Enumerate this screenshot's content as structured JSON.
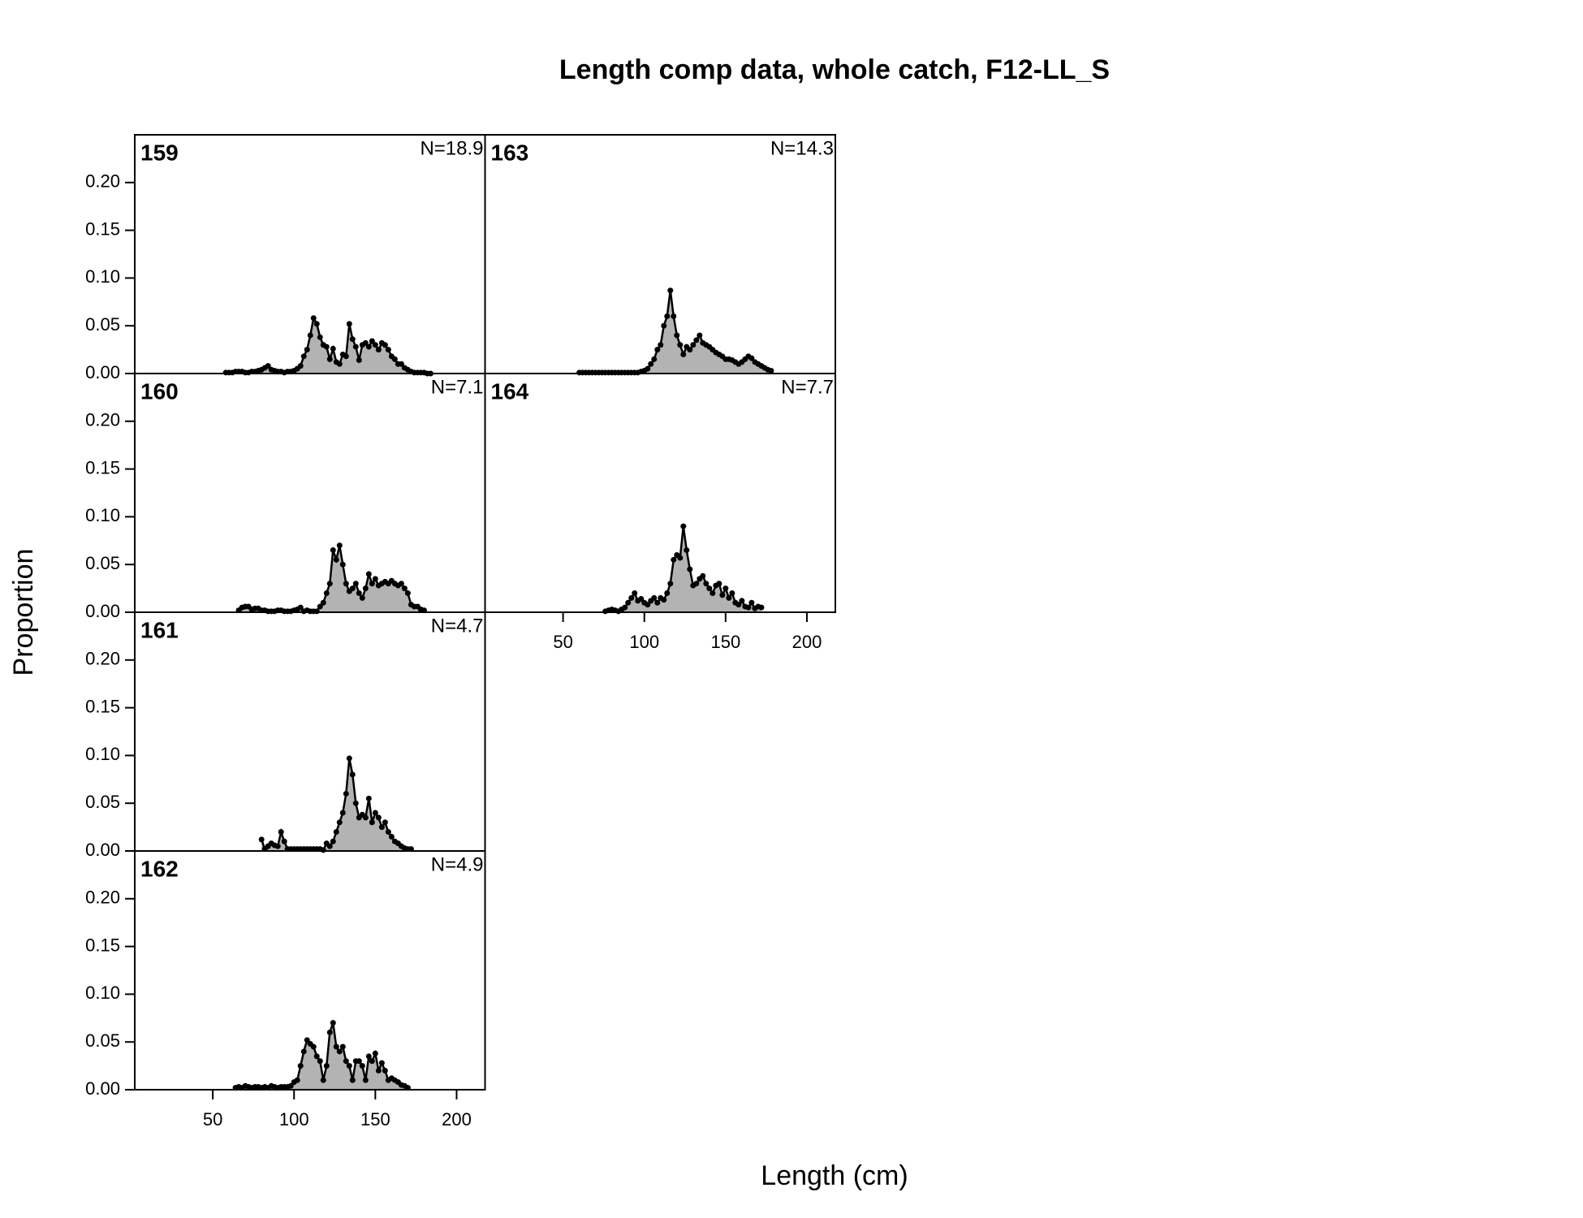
{
  "title": "Length comp data, whole catch, F12-LL_S",
  "x_label": "Length (cm)",
  "y_label": "Proportion",
  "chart_data": [
    {
      "type": "area",
      "title": "159",
      "annotation": "N=18.9",
      "color": "#b3b3b3",
      "line_color": "#000000",
      "xlim": [
        2,
        217.5
      ],
      "ylim": [
        0,
        0.25
      ],
      "yticks": [
        {
          "value": 0,
          "label": "0.00"
        },
        0.05,
        {
          "value": 0.1,
          "label": "0.10"
        },
        0.15,
        {
          "value": 0.2,
          "label": "0.20"
        }
      ],
      "x": [
        58,
        60,
        62,
        64,
        66,
        68,
        70,
        72,
        74,
        76,
        78,
        80,
        82,
        84,
        86,
        88,
        90,
        92,
        94,
        96,
        98,
        100,
        102,
        104,
        106,
        108,
        110,
        112,
        114,
        116,
        118,
        120,
        122,
        124,
        126,
        128,
        130,
        132,
        134,
        136,
        138,
        140,
        142,
        144,
        146,
        148,
        150,
        152,
        154,
        156,
        158,
        160,
        162,
        164,
        166,
        168,
        170,
        172,
        174,
        176,
        178,
        180,
        182,
        184
      ],
      "values": [
        0.001,
        0.001,
        0.001,
        0.002,
        0.002,
        0.002,
        0.001,
        0.001,
        0.002,
        0.002,
        0.003,
        0.004,
        0.006,
        0.008,
        0.004,
        0.003,
        0.002,
        0.002,
        0.001,
        0.002,
        0.002,
        0.003,
        0.005,
        0.008,
        0.018,
        0.025,
        0.04,
        0.058,
        0.052,
        0.038,
        0.03,
        0.028,
        0.015,
        0.026,
        0.012,
        0.01,
        0.02,
        0.018,
        0.052,
        0.036,
        0.028,
        0.014,
        0.03,
        0.032,
        0.028,
        0.034,
        0.03,
        0.025,
        0.032,
        0.03,
        0.025,
        0.018,
        0.015,
        0.01,
        0.01,
        0.006,
        0.004,
        0.002,
        0.001,
        0.001,
        0.001,
        0.001,
        0.0,
        0.0
      ]
    },
    {
      "type": "area",
      "title": "160",
      "annotation": "N=7.1",
      "color": "#b3b3b3",
      "line_color": "#000000",
      "xlim": [
        2,
        217.5
      ],
      "ylim": [
        0,
        0.25
      ],
      "yticks": [
        {
          "value": 0,
          "label": "0.00"
        },
        0.05,
        {
          "value": 0.1,
          "label": "0.10"
        },
        0.15,
        {
          "value": 0.2,
          "label": "0.20"
        }
      ],
      "x": [
        66,
        68,
        70,
        72,
        74,
        76,
        78,
        80,
        82,
        84,
        86,
        88,
        90,
        92,
        94,
        96,
        98,
        100,
        102,
        104,
        106,
        108,
        110,
        112,
        114,
        116,
        118,
        120,
        122,
        124,
        126,
        128,
        130,
        132,
        134,
        136,
        138,
        140,
        142,
        144,
        146,
        148,
        150,
        152,
        154,
        156,
        158,
        160,
        162,
        164,
        166,
        168,
        170,
        172,
        174,
        176,
        178,
        180
      ],
      "values": [
        0.002,
        0.005,
        0.006,
        0.006,
        0.003,
        0.004,
        0.004,
        0.002,
        0.002,
        0.001,
        0.001,
        0.001,
        0.002,
        0.002,
        0.001,
        0.001,
        0.001,
        0.002,
        0.003,
        0.005,
        0.001,
        0.002,
        0.001,
        0.001,
        0.001,
        0.006,
        0.01,
        0.02,
        0.03,
        0.065,
        0.055,
        0.07,
        0.05,
        0.03,
        0.022,
        0.025,
        0.03,
        0.02,
        0.015,
        0.025,
        0.04,
        0.03,
        0.035,
        0.028,
        0.03,
        0.032,
        0.03,
        0.033,
        0.03,
        0.028,
        0.03,
        0.025,
        0.02,
        0.008,
        0.006,
        0.006,
        0.003,
        0.002
      ]
    },
    {
      "type": "area",
      "title": "161",
      "annotation": "N=4.7",
      "color": "#b3b3b3",
      "line_color": "#000000",
      "xlim": [
        2,
        217.5
      ],
      "ylim": [
        0,
        0.25
      ],
      "yticks": [
        {
          "value": 0,
          "label": "0.00"
        },
        0.05,
        {
          "value": 0.1,
          "label": "0.10"
        },
        0.15,
        {
          "value": 0.2,
          "label": "0.20"
        }
      ],
      "x": [
        80,
        82,
        84,
        86,
        88,
        90,
        92,
        94,
        96,
        98,
        100,
        102,
        104,
        106,
        108,
        110,
        112,
        114,
        116,
        118,
        120,
        122,
        124,
        126,
        128,
        130,
        132,
        134,
        136,
        138,
        140,
        142,
        144,
        146,
        148,
        150,
        152,
        154,
        156,
        158,
        160,
        162,
        164,
        166,
        168,
        170,
        172
      ],
      "values": [
        0.012,
        0.002,
        0.005,
        0.008,
        0.006,
        0.005,
        0.02,
        0.01,
        0.002,
        0.002,
        0.002,
        0.002,
        0.002,
        0.002,
        0.002,
        0.002,
        0.002,
        0.002,
        0.002,
        0.001,
        0.008,
        0.005,
        0.01,
        0.02,
        0.03,
        0.04,
        0.06,
        0.097,
        0.08,
        0.05,
        0.035,
        0.038,
        0.035,
        0.055,
        0.03,
        0.04,
        0.035,
        0.025,
        0.03,
        0.02,
        0.015,
        0.01,
        0.008,
        0.005,
        0.003,
        0.002,
        0.002
      ]
    },
    {
      "type": "area",
      "title": "162",
      "annotation": "N=4.9",
      "color": "#b3b3b3",
      "line_color": "#000000",
      "xlim": [
        2,
        217.5
      ],
      "ylim": [
        0,
        0.25
      ],
      "yticks": [
        {
          "value": 0,
          "label": "0.00"
        },
        0.05,
        {
          "value": 0.1,
          "label": "0.10"
        },
        0.15,
        {
          "value": 0.2,
          "label": "0.20"
        }
      ],
      "xticks": [
        50,
        100,
        150,
        200
      ],
      "x": [
        64,
        66,
        68,
        70,
        72,
        74,
        76,
        78,
        80,
        82,
        84,
        86,
        88,
        90,
        92,
        94,
        96,
        98,
        100,
        102,
        104,
        106,
        108,
        110,
        112,
        114,
        116,
        118,
        120,
        122,
        124,
        126,
        128,
        130,
        132,
        134,
        136,
        138,
        140,
        142,
        144,
        146,
        148,
        150,
        152,
        154,
        156,
        158,
        160,
        162,
        164,
        166,
        168,
        170
      ],
      "values": [
        0.002,
        0.003,
        0.002,
        0.004,
        0.003,
        0.002,
        0.003,
        0.003,
        0.002,
        0.003,
        0.002,
        0.004,
        0.003,
        0.002,
        0.003,
        0.003,
        0.003,
        0.004,
        0.008,
        0.01,
        0.025,
        0.04,
        0.052,
        0.048,
        0.045,
        0.035,
        0.03,
        0.01,
        0.025,
        0.06,
        0.07,
        0.045,
        0.04,
        0.045,
        0.03,
        0.025,
        0.01,
        0.03,
        0.03,
        0.025,
        0.01,
        0.035,
        0.03,
        0.038,
        0.02,
        0.028,
        0.02,
        0.01,
        0.012,
        0.01,
        0.008,
        0.005,
        0.004,
        0.002
      ]
    },
    {
      "type": "area",
      "title": "163",
      "annotation": "N=14.3",
      "color": "#b3b3b3",
      "line_color": "#000000",
      "xlim": [
        2,
        217.5
      ],
      "ylim": [
        0,
        0.25
      ],
      "x": [
        60,
        62,
        64,
        66,
        68,
        70,
        72,
        74,
        76,
        78,
        80,
        82,
        84,
        86,
        88,
        90,
        92,
        94,
        96,
        98,
        100,
        102,
        104,
        106,
        108,
        110,
        112,
        114,
        116,
        118,
        120,
        122,
        124,
        126,
        128,
        130,
        132,
        134,
        136,
        138,
        140,
        142,
        144,
        146,
        148,
        150,
        152,
        154,
        156,
        158,
        160,
        162,
        164,
        166,
        168,
        170,
        172,
        174,
        176,
        178
      ],
      "values": [
        0.001,
        0.001,
        0.001,
        0.001,
        0.001,
        0.001,
        0.001,
        0.001,
        0.001,
        0.001,
        0.001,
        0.001,
        0.001,
        0.001,
        0.001,
        0.001,
        0.001,
        0.001,
        0.001,
        0.002,
        0.003,
        0.005,
        0.01,
        0.015,
        0.025,
        0.03,
        0.05,
        0.06,
        0.087,
        0.06,
        0.04,
        0.03,
        0.02,
        0.028,
        0.025,
        0.03,
        0.035,
        0.04,
        0.032,
        0.03,
        0.028,
        0.025,
        0.022,
        0.02,
        0.018,
        0.015,
        0.015,
        0.014,
        0.012,
        0.01,
        0.012,
        0.015,
        0.018,
        0.016,
        0.012,
        0.01,
        0.008,
        0.006,
        0.004,
        0.003
      ]
    },
    {
      "type": "area",
      "title": "164",
      "annotation": "N=7.7",
      "color": "#b3b3b3",
      "line_color": "#000000",
      "xlim": [
        2,
        217.5
      ],
      "ylim": [
        0,
        0.25
      ],
      "xticks": [
        50,
        100,
        150,
        200
      ],
      "x": [
        76,
        78,
        80,
        82,
        84,
        86,
        88,
        90,
        92,
        94,
        96,
        98,
        100,
        102,
        104,
        106,
        108,
        110,
        112,
        114,
        116,
        118,
        120,
        122,
        124,
        126,
        128,
        130,
        132,
        134,
        136,
        138,
        140,
        142,
        144,
        146,
        148,
        150,
        152,
        154,
        156,
        158,
        160,
        162,
        164,
        166,
        168,
        170,
        172
      ],
      "values": [
        0.001,
        0.002,
        0.003,
        0.002,
        0.001,
        0.003,
        0.005,
        0.01,
        0.015,
        0.02,
        0.012,
        0.014,
        0.01,
        0.008,
        0.012,
        0.015,
        0.01,
        0.015,
        0.013,
        0.02,
        0.03,
        0.055,
        0.06,
        0.057,
        0.09,
        0.065,
        0.045,
        0.028,
        0.03,
        0.035,
        0.038,
        0.03,
        0.025,
        0.02,
        0.028,
        0.03,
        0.018,
        0.025,
        0.015,
        0.02,
        0.01,
        0.008,
        0.012,
        0.006,
        0.005,
        0.01,
        0.004,
        0.006,
        0.005
      ]
    }
  ]
}
